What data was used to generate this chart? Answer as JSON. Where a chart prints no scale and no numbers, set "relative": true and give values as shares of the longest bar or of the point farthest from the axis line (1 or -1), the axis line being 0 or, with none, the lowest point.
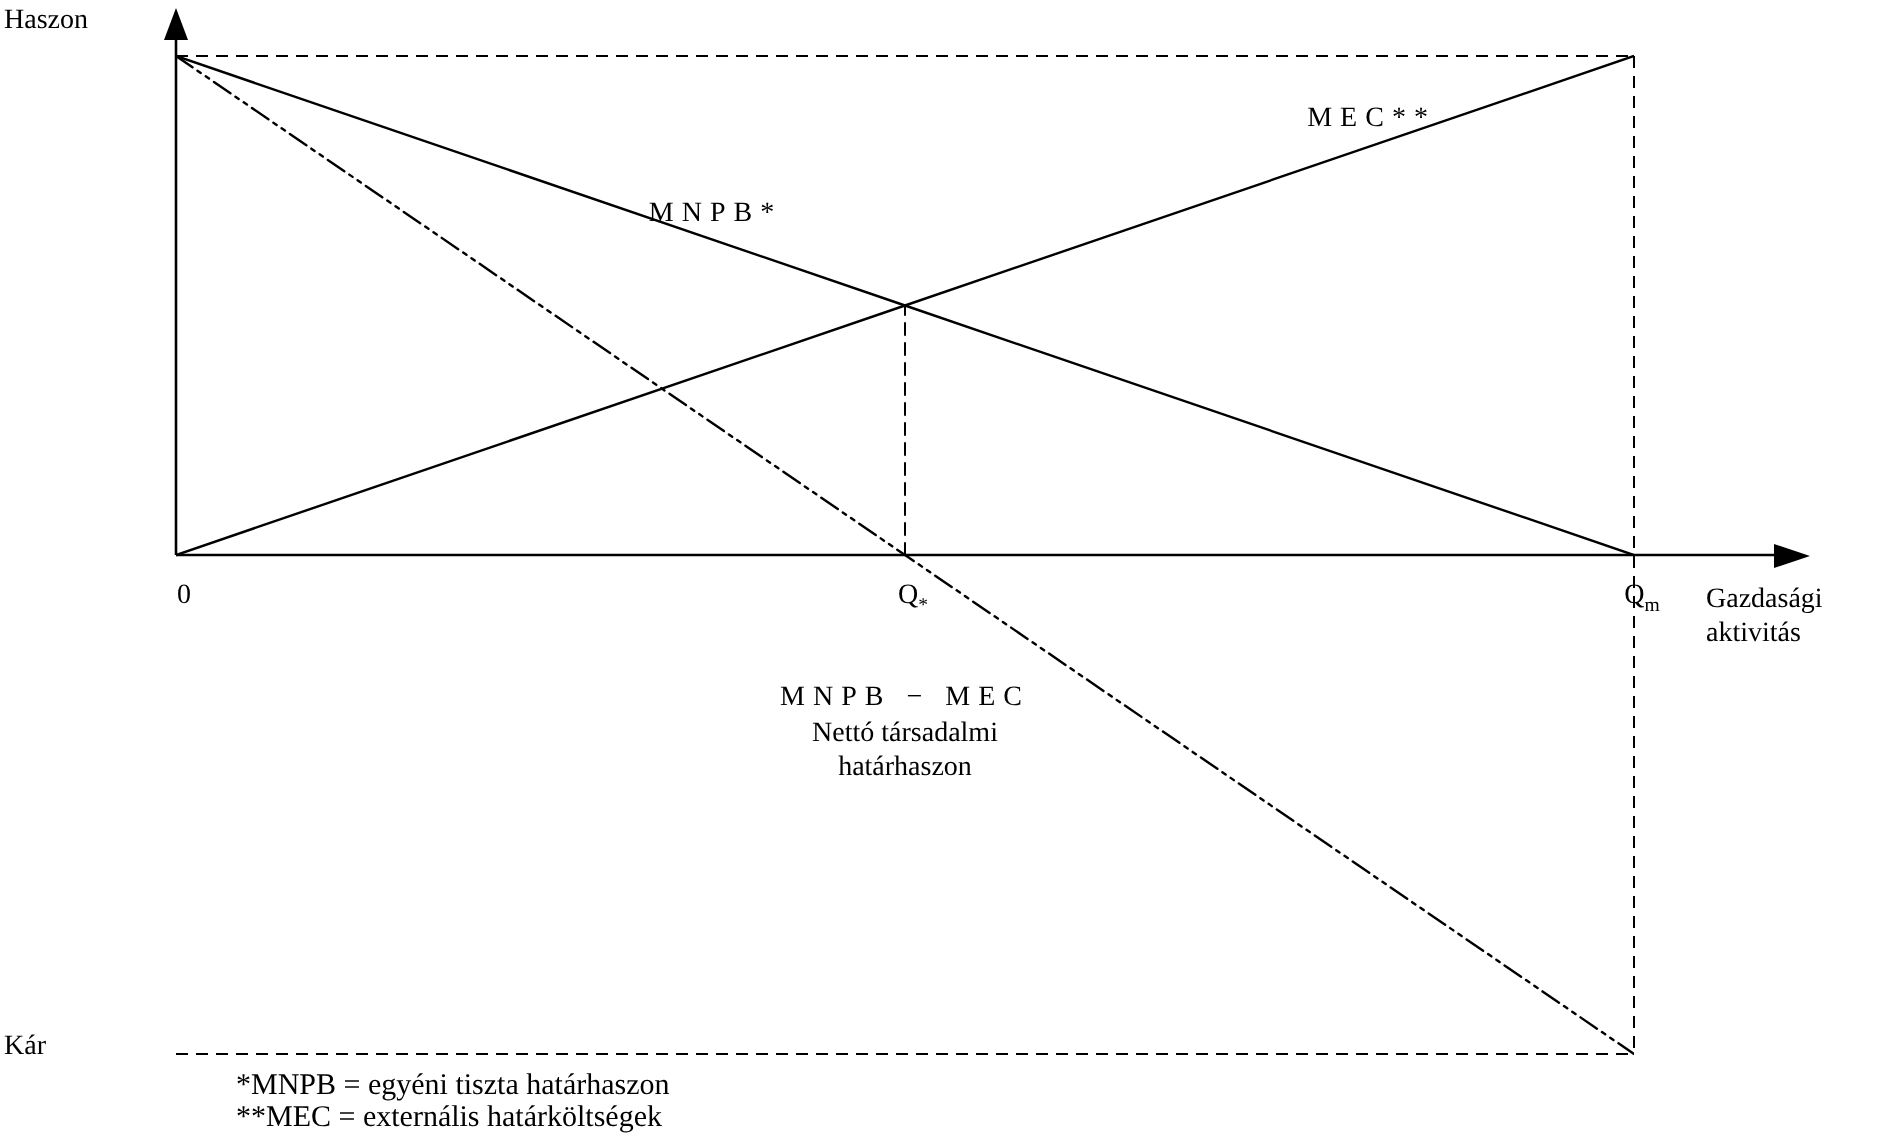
{
  "chart_data": {
    "type": "line",
    "relative": true,
    "ylabel": "Haszon",
    "xlabel": "Gazdasági aktivitás",
    "categories": [
      "0",
      "Q$_{*}$",
      "Q$_{m}$"
    ],
    "series": [
      {
        "name": "MNPB*",
        "color": "#000000",
        "values": [
          1,
          0.5,
          0
        ],
        "line_style": "solid"
      },
      {
        "name": "MEC**",
        "color": "#000000",
        "values": [
          0,
          0.5,
          1
        ],
        "line_style": "solid"
      },
      {
        "name": "MNPB − MEC",
        "color": "#000000",
        "values": [
          1,
          0,
          -1
        ],
        "line_style": "dashed"
      },
      {
        "color": "#000000",
        "x": [
          "Q$_{*}$",
          "Q$_{*}$"
        ],
        "values": [
          0,
          0.5
        ],
        "line_style": "dashed"
      }
    ],
    "ref_lines": [
      {
        "axis": "y",
        "value": 1,
        "line_style": "dashed",
        "color": "#000000"
      },
      {
        "axis": "y",
        "value": -1,
        "line_style": "dashed",
        "color": "#000000"
      },
      {
        "axis": "x",
        "value": "Q$_{m}$",
        "line_style": "dashed",
        "color": "#000000"
      }
    ],
    "annotations": [
      "Kár",
      "Nettó társadalmi határhaszon",
      "*MNPB = egyéni tiszta határhaszon",
      "**MEC = externális határköltségek"
    ],
    "marker": "none",
    "legend": false,
    "grid": false
  }
}
